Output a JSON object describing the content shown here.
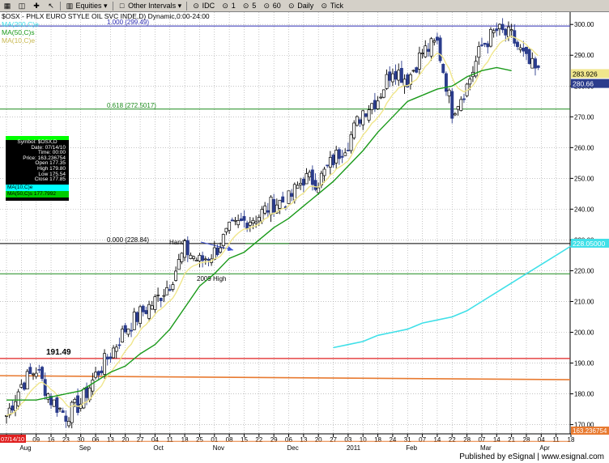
{
  "toolbar": {
    "items": [
      "Equities",
      "Other Intervals",
      "IDC",
      "1",
      "5",
      "60",
      "Daily",
      "Tick"
    ]
  },
  "chart_header": {
    "title": "$OSX - PHLX EURO STYLE OIL SVC INDE,D) Dynamic,0:00-24:00",
    "study_ma200": "MA(200,C)e",
    "study_ma50": "MA(50,C)s",
    "study_ma10": "MA(10,C)e"
  },
  "colors": {
    "background": "#ffffff",
    "up_bar": "#000000",
    "down_bar": "#2b3c8c",
    "ma10": "#f0e68c",
    "ma50": "#1a9a1a",
    "ma200": "#40e0e8",
    "fib_1000": "#2b2bb0",
    "fib_0618": "#1a8a1a",
    "fib_0000": "#000000",
    "line_2009": "#1a8a1a",
    "level_191": "#e02020",
    "orange_line": "#e87a30",
    "bottom_line": "#e87a30"
  },
  "data_window": {
    "symbol": "Symbol: $OSX,D",
    "date": "Date: 07/14/10",
    "time": "Time: 00:00",
    "price": "Price: 163.236754",
    "open": "Open 177.35",
    "high": "High 179.80",
    "low": "Low 175.54",
    "close": "Close 177.85",
    "ma10": "MA(10,C)e",
    "ma50": "MA(50,C)s 177.7992"
  },
  "annotations": {
    "fib_1000": "1.000 (299.49)",
    "fib_0618": "0.618 (272.5017)",
    "fib_0000": "0.000 (228.84)",
    "handle": "Handle",
    "high_2009": "2009 High",
    "level_191": "191.49"
  },
  "price_labels": {
    "ma10_value": "283.926",
    "last_close": "280.66",
    "ma200_value": "228.05000",
    "bottom_value": "163.236754",
    "cursor_date": "07/14/10"
  },
  "footer": {
    "text": "Published by eSignal | www.esignal.com"
  },
  "chart_data": {
    "type": "candlestick",
    "y_axis": {
      "range": [
        167,
        304
      ],
      "ticks": [
        170,
        180,
        190,
        200,
        210,
        220,
        230,
        240,
        250,
        260,
        270,
        280,
        290,
        300
      ],
      "tick_labels": [
        "170.00",
        "180.00",
        "190.00",
        "200.00",
        "210.00",
        "220.00",
        "230.00",
        "240.00",
        "250.00",
        "260.00",
        "270.00",
        "280.00",
        "290.00",
        "300.00"
      ]
    },
    "x_axis": {
      "day_labels": [
        "26",
        "02",
        "09",
        "16",
        "23",
        "30",
        "06",
        "13",
        "20",
        "27",
        "04",
        "11",
        "18",
        "25",
        "01",
        "08",
        "15",
        "22",
        "29",
        "06",
        "13",
        "20",
        "27",
        "03",
        "10",
        "18",
        "24",
        "31",
        "07",
        "14",
        "22",
        "28",
        "07",
        "14",
        "21",
        "28",
        "04",
        "11",
        "18"
      ],
      "month_labels": [
        "Aug",
        "Sep",
        "Oct",
        "Nov",
        "Dec",
        "2011",
        "Feb",
        "Mar",
        "Apr"
      ],
      "month_label_week_index": [
        1,
        5,
        10,
        14,
        19,
        23,
        27,
        32,
        36
      ]
    },
    "horizontal_levels": [
      {
        "name": "fib_1000",
        "value": 299.49
      },
      {
        "name": "fib_0618",
        "value": 272.5017
      },
      {
        "name": "fib_0000",
        "value": 228.84
      },
      {
        "name": "high_2009",
        "value": 219.0
      },
      {
        "name": "level_191",
        "value": 191.49
      }
    ],
    "weekly_closes": [
      173,
      183,
      188,
      178,
      173,
      177,
      186,
      193,
      201,
      206,
      210,
      216,
      227,
      223,
      226,
      233,
      236,
      238,
      242,
      243,
      250,
      249,
      256,
      262,
      272,
      276,
      286,
      282,
      291,
      294,
      272,
      280,
      293,
      298,
      296,
      288,
      283
    ],
    "ma50_weekly": [
      178,
      178,
      178,
      179,
      180,
      181,
      184,
      187,
      189,
      193,
      196,
      201,
      208,
      215,
      219,
      224,
      226,
      230,
      234,
      237,
      241,
      245,
      249,
      254,
      259,
      265,
      270,
      275,
      277,
      279,
      280,
      283,
      285,
      286,
      285
    ],
    "ma200_weekly": [
      195,
      196,
      197,
      199,
      200,
      201,
      203,
      204,
      205,
      207,
      210,
      213,
      216,
      219,
      222,
      225,
      228
    ]
  }
}
